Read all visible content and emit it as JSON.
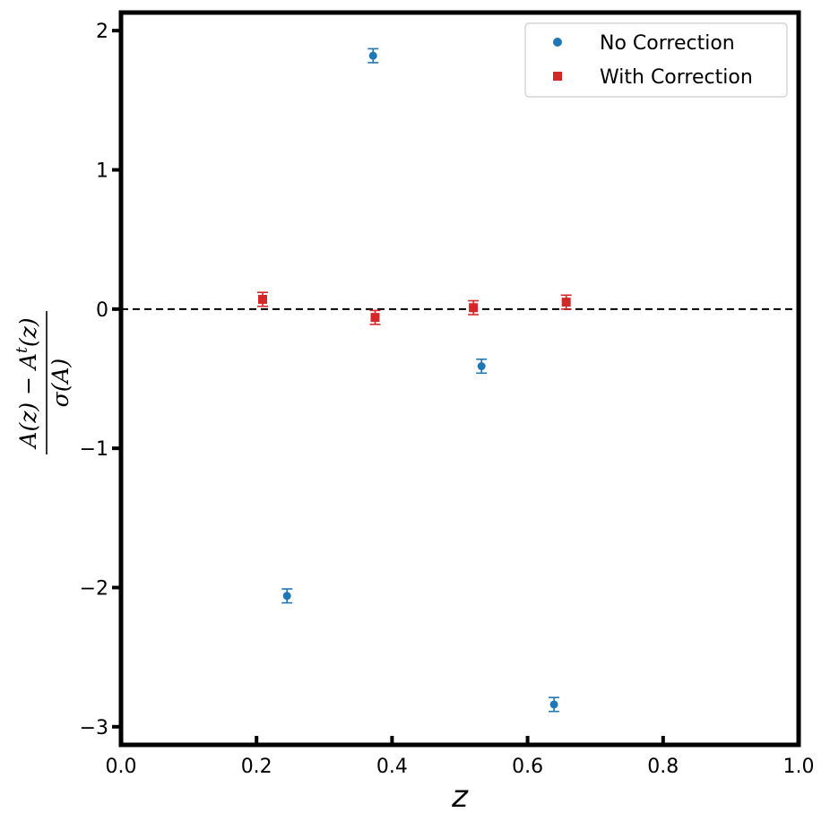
{
  "chart_data": {
    "type": "scatter",
    "title": "",
    "xlabel": "z",
    "ylabel": {
      "numerator_lead": "A(z) − A",
      "numerator_superscript": "t",
      "numerator_tail": "(z)",
      "denominator": "σ(A)"
    },
    "xlim": [
      0.0,
      1.0
    ],
    "ylim": [
      -3.13,
      2.13
    ],
    "x_ticks": [
      0.0,
      0.2,
      0.4,
      0.6,
      0.8,
      1.0
    ],
    "x_tick_labels": [
      "0.0",
      "0.2",
      "0.4",
      "0.6",
      "0.8",
      "1.0"
    ],
    "y_ticks": [
      -3,
      -2,
      -1,
      0,
      1,
      2
    ],
    "y_tick_labels": [
      "−3",
      "−2",
      "−1",
      "0",
      "1",
      "2"
    ],
    "grid": false,
    "legend_position": "top-right",
    "reference_line": {
      "y": 0,
      "style": "dashed",
      "color": "#000000"
    },
    "series": [
      {
        "name": "No Correction",
        "marker": "circle",
        "color": "#1f77b4",
        "points": [
          {
            "x": 0.245,
            "y": -2.06,
            "yerr": 0.05
          },
          {
            "x": 0.372,
            "y": 1.82,
            "yerr": 0.05
          },
          {
            "x": 0.532,
            "y": -0.41,
            "yerr": 0.05
          },
          {
            "x": 0.639,
            "y": -2.84,
            "yerr": 0.05
          }
        ]
      },
      {
        "name": "With Correction",
        "marker": "square",
        "color": "#d62728",
        "points": [
          {
            "x": 0.209,
            "y": 0.07,
            "yerr": 0.05
          },
          {
            "x": 0.375,
            "y": -0.06,
            "yerr": 0.05
          },
          {
            "x": 0.52,
            "y": 0.01,
            "yerr": 0.05
          },
          {
            "x": 0.657,
            "y": 0.05,
            "yerr": 0.05
          }
        ]
      }
    ]
  }
}
